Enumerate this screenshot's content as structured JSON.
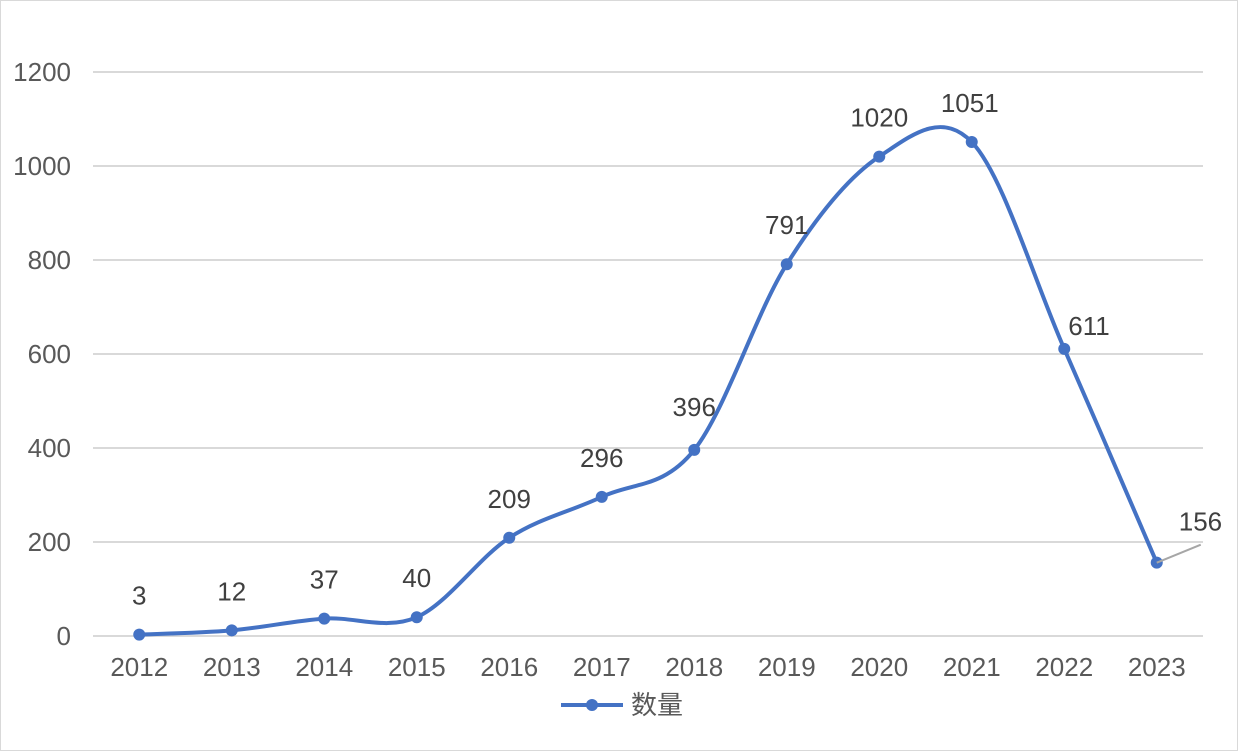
{
  "chart_data": {
    "type": "line",
    "title": "",
    "xlabel": "",
    "ylabel": "",
    "categories": [
      "2012",
      "2013",
      "2014",
      "2015",
      "2016",
      "2017",
      "2018",
      "2019",
      "2020",
      "2021",
      "2022",
      "2023"
    ],
    "series": [
      {
        "name": "数量",
        "values": [
          3,
          12,
          37,
          40,
          209,
          296,
          396,
          791,
          1020,
          1051,
          611,
          156
        ],
        "color": "#4472c4",
        "smooth": true,
        "markers": true,
        "data_labels": [
          "3",
          "12",
          "37",
          "40",
          "209",
          "296",
          "396",
          "791",
          "1020",
          "1051",
          "611",
          "156"
        ]
      }
    ],
    "ylim": [
      0,
      1200
    ],
    "yticks": [
      0,
      200,
      400,
      600,
      800,
      1000,
      1200
    ],
    "grid": true,
    "legend": "bottom",
    "grid_color": "#d9d9d9",
    "axis_color": "#d9d9d9"
  }
}
